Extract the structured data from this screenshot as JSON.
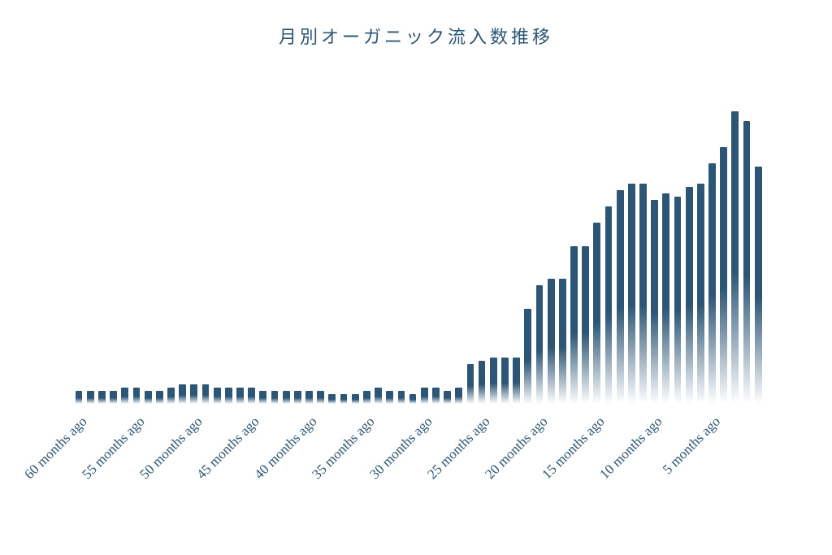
{
  "chart": {
    "type": "bar",
    "title": "月別オーガニック流入数推移",
    "title_fontsize": 22,
    "title_color": "#2d5676",
    "background_color": "#ffffff",
    "bar_color_top": "#2d5676",
    "bar_color_bottom_fade": "#ffffff",
    "bar_gradient_stop": 0.55,
    "bar_width_ratio": 0.62,
    "n_bars": 60,
    "xtick_labels": [
      "60 months ago",
      "55 months ago",
      "50 months ago",
      "45 months ago",
      "40 months ago",
      "35 months ago",
      "30 months ago",
      "25 months ago",
      "20 months ago",
      "15 months ago",
      "10 months ago",
      "5 months ago"
    ],
    "xtick_positions": [
      0,
      5,
      10,
      15,
      20,
      25,
      30,
      35,
      40,
      45,
      50,
      55
    ],
    "xtick_fontsize": 17,
    "xtick_color": "#2d5676",
    "xtick_rotation_deg": -45,
    "ylim": [
      0,
      100
    ],
    "values": [
      4,
      4,
      4,
      4,
      5,
      5,
      4,
      4,
      5,
      6,
      6,
      6,
      5,
      5,
      5,
      5,
      4,
      4,
      4,
      4,
      4,
      4,
      3,
      3,
      3,
      4,
      5,
      4,
      4,
      3,
      5,
      5,
      4,
      5,
      12,
      13,
      14,
      14,
      14,
      29,
      36,
      38,
      38,
      48,
      48,
      55,
      60,
      65,
      67,
      67,
      62,
      64,
      63,
      66,
      67,
      73,
      78,
      89,
      86,
      72
    ]
  }
}
